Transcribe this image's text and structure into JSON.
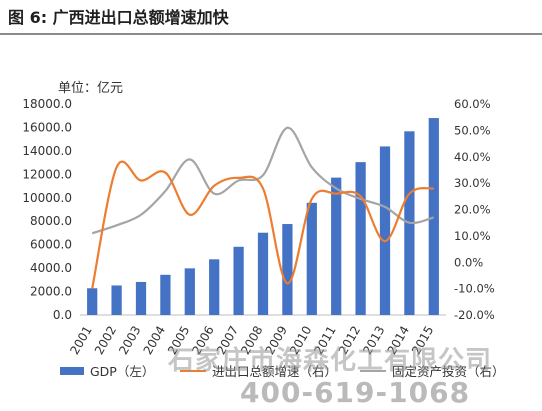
{
  "figure_title": "图 6: 广西进出口总额增速加快",
  "unit_label": "单位：亿元",
  "chart_data": {
    "type": "bar",
    "categories": [
      "2001",
      "2002",
      "2003",
      "2004",
      "2005",
      "2006",
      "2007",
      "2008",
      "2009",
      "2010",
      "2011",
      "2012",
      "2013",
      "2014",
      "2015"
    ],
    "series": [
      {
        "name": "GDP（左）",
        "kind": "bar",
        "axis": "left",
        "color": "#4472c4",
        "values": [
          2280,
          2520,
          2820,
          3430,
          3980,
          4750,
          5820,
          7020,
          7760,
          9570,
          11720,
          13040,
          14380,
          15670,
          16800
        ]
      },
      {
        "name": "进出口总额增速（右）",
        "kind": "line",
        "axis": "right",
        "color": "#ed7d31",
        "values": [
          -10.0,
          36.0,
          31.0,
          34.0,
          18.0,
          29.0,
          32.0,
          28.0,
          -8.0,
          24.0,
          26.0,
          25.0,
          8.0,
          26.0,
          28.0
        ]
      },
      {
        "name": "固定资产投资（右）",
        "kind": "line",
        "axis": "right",
        "color": "#a5a5a5",
        "values": [
          11.0,
          14.0,
          18.0,
          27.0,
          39.0,
          26.0,
          31.0,
          33.0,
          51.0,
          36.0,
          28.0,
          24.0,
          21.0,
          15.0,
          17.0
        ]
      }
    ],
    "left_ticks": [
      "0.0",
      "2000.0",
      "4000.0",
      "6000.0",
      "8000.0",
      "10000.0",
      "12000.0",
      "14000.0",
      "16000.0",
      "18000.0"
    ],
    "right_ticks": [
      "-20.0%",
      "-10.0%",
      "0.0%",
      "10.0%",
      "20.0%",
      "30.0%",
      "40.0%",
      "50.0%",
      "60.0%"
    ],
    "ylim_left": [
      0,
      18000
    ],
    "ylim_right": [
      -20,
      60
    ],
    "grid": false,
    "legend_position": "bottom"
  },
  "watermark": {
    "company": "石家庄市海森化工有限公司",
    "phone": "400-619-1068"
  }
}
